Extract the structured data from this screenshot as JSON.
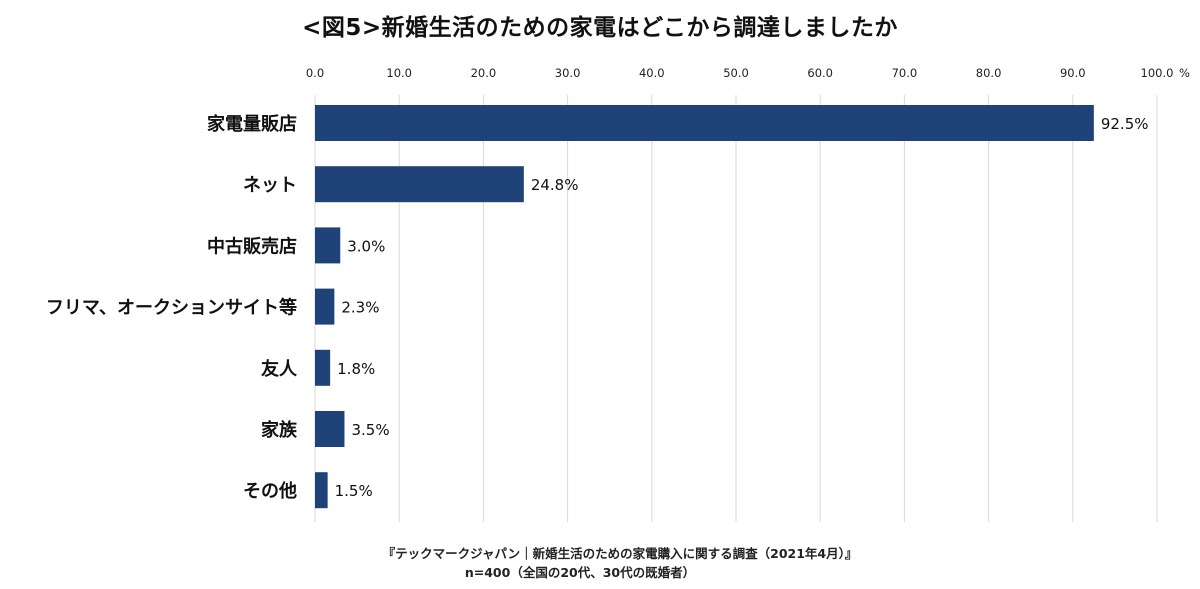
{
  "title": "<図5>新婚生活のための家電はどこから調達しましたか",
  "footer": {
    "source": "『テックマークジャパン｜新婚生活のための家電購入に関する調査（2021年4月）』",
    "sample": "n=400（全国の20代、30代の既婚者）"
  },
  "colors": {
    "bar": "#1f4378",
    "grid": "#d9d9d9",
    "text": "#111111"
  },
  "chart_data": {
    "type": "bar",
    "orientation": "horizontal",
    "categories": [
      "家電量販店",
      "ネット",
      "中古販売店",
      "フリマ、オークションサイト等",
      "友人",
      "家族",
      "その他"
    ],
    "values": [
      92.5,
      24.8,
      3.0,
      2.3,
      1.8,
      3.5,
      1.5
    ],
    "value_labels": [
      "92.5%",
      "24.8%",
      "3.0%",
      "2.3%",
      "1.8%",
      "3.5%",
      "1.5%"
    ],
    "xlim": [
      0,
      100
    ],
    "x_ticks": [
      "0.0",
      "10.0",
      "20.0",
      "30.0",
      "40.0",
      "50.0",
      "60.0",
      "70.0",
      "80.0",
      "90.0",
      "100.0"
    ],
    "x_unit": "%",
    "axis_position": "top",
    "grid": true
  }
}
